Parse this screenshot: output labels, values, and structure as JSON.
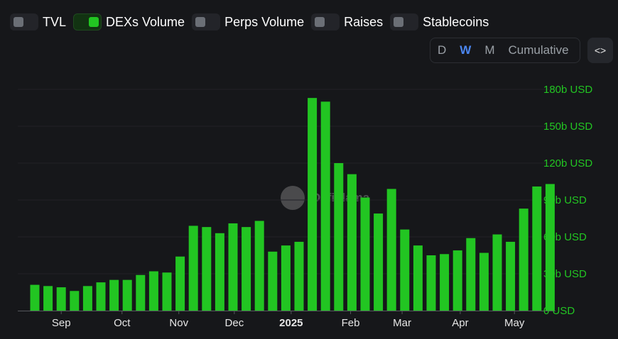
{
  "toggles": [
    {
      "label": "TVL",
      "on": false
    },
    {
      "label": "DEXs Volume",
      "on": true
    },
    {
      "label": "Perps Volume",
      "on": false
    },
    {
      "label": "Raises",
      "on": false
    },
    {
      "label": "Stablecoins",
      "on": false
    }
  ],
  "periods": [
    {
      "label": "D",
      "active": false
    },
    {
      "label": "W",
      "active": true
    },
    {
      "label": "M",
      "active": false
    },
    {
      "label": "Cumulative",
      "active": false
    }
  ],
  "embed_icon": "code-icon",
  "watermark": "DefiLlama",
  "colors": {
    "bar": "#22c522",
    "axis_label": "#22c522",
    "background": "#16171a",
    "active_period": "#4b86f0"
  },
  "chart_data": {
    "type": "bar",
    "title": "",
    "series": [
      {
        "values": [
          21,
          20,
          19,
          16,
          20,
          23,
          25,
          25,
          29,
          32,
          31,
          44,
          69,
          68,
          63,
          71,
          68,
          73,
          48,
          53,
          56,
          173,
          170,
          120,
          111,
          92,
          79,
          99,
          66,
          53,
          45,
          46,
          49,
          59,
          47,
          62,
          56,
          83,
          101,
          103
        ]
      }
    ],
    "x_ticks": [
      "Sep",
      "Oct",
      "Nov",
      "Dec",
      "2025",
      "Feb",
      "Mar",
      "Apr",
      "May"
    ],
    "x_tick_bold": [
      false,
      false,
      false,
      false,
      true,
      false,
      false,
      false,
      false
    ],
    "x_tick_bar_index": [
      2,
      6.6,
      10.9,
      15.1,
      19.4,
      23.9,
      27.8,
      32.2,
      36.3
    ],
    "y_ticks": [
      0,
      30,
      60,
      90,
      120,
      150,
      180
    ],
    "y_tick_labels": [
      "0 USD",
      "30b USD",
      "60b USD",
      "90b USD",
      "120b USD",
      "150b USD",
      "180b USD"
    ],
    "ylim": [
      0,
      180
    ],
    "unit": "b USD",
    "grid": true
  }
}
